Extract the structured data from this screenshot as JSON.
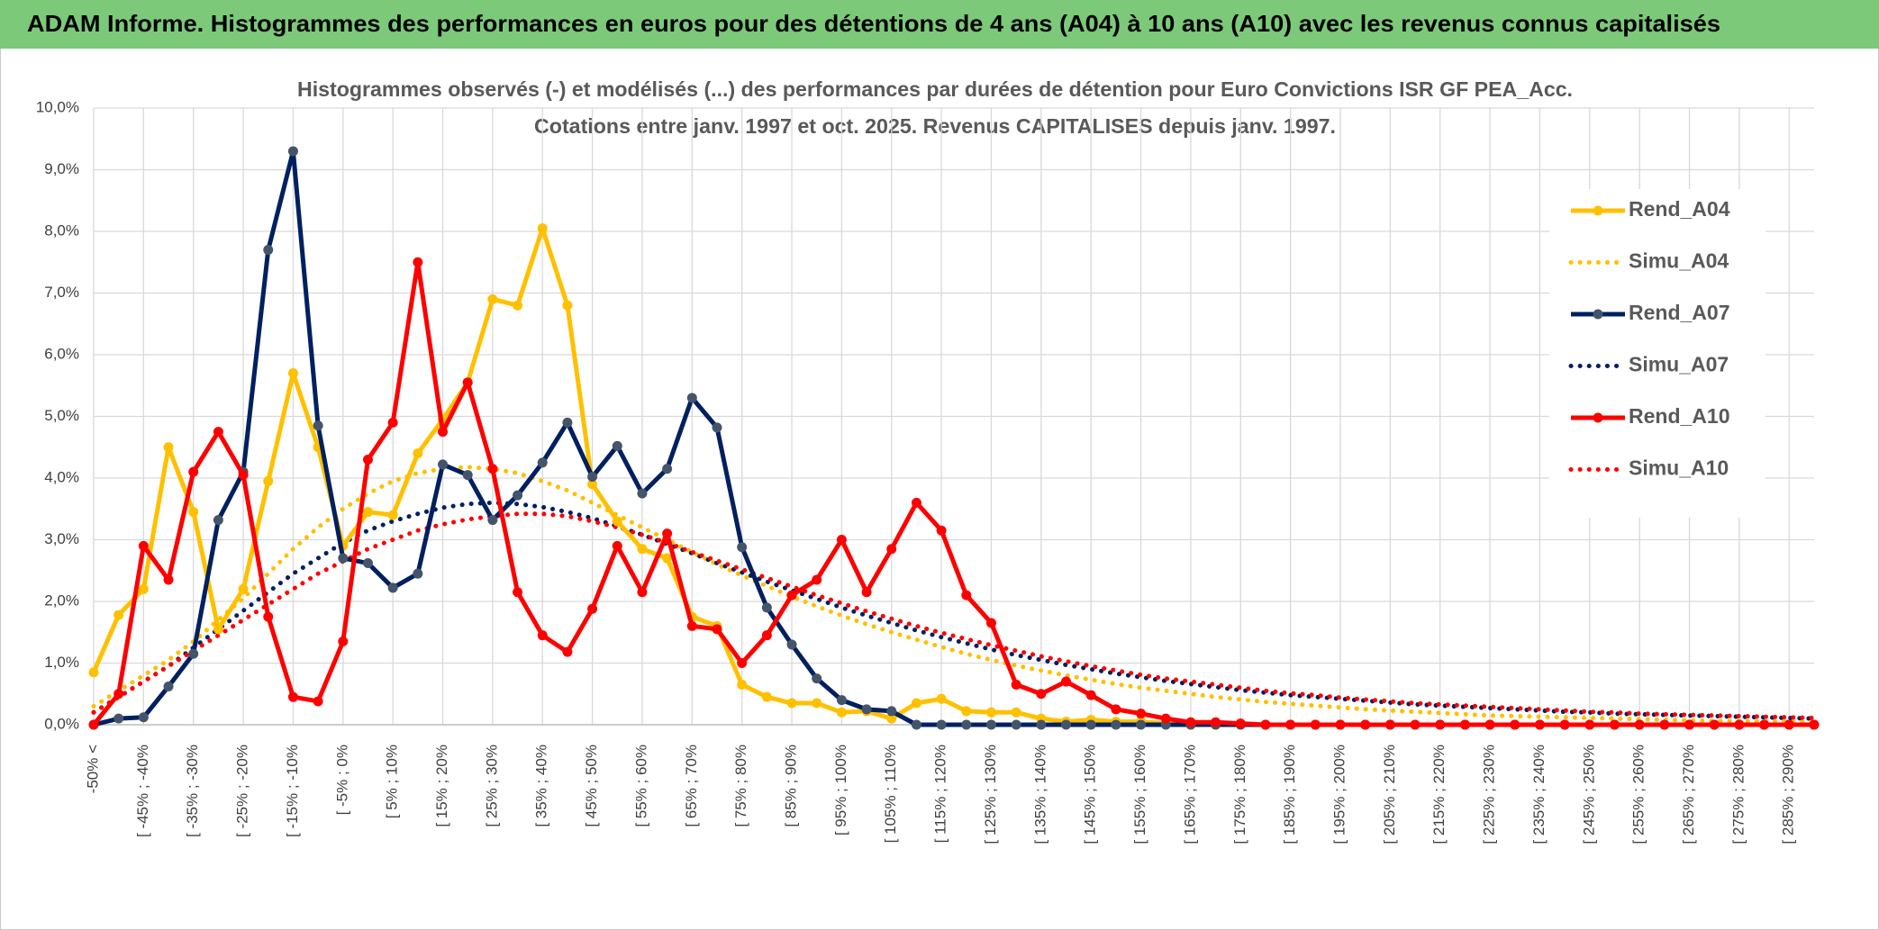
{
  "header": {
    "title": "ADAM Informe. Histogrammes des performances en euros pour des détentions de 4 ans (A04) à 10 ans (A10) avec les revenus connus capitalisés"
  },
  "chart_data": {
    "type": "line",
    "title": "Histogrammes observés (-) et modélisés (...) des performances par durées de détention pour Euro Convictions ISR GF PEA_Acc.",
    "subtitle": "Cotations entre janv. 1997 et oct. 2025. Revenus CAPITALISES depuis janv. 1997.",
    "categories": [
      "-50% <",
      null,
      "[ -45% ; -40%",
      null,
      "[ -35% ; -30%",
      null,
      "[ -25% ; -20%",
      null,
      "[ -15% ; -10%",
      null,
      "[ -5% ; 0%",
      null,
      "[ 5% ; 10%",
      null,
      "[ 15% ; 20%",
      null,
      "[ 25% ; 30%",
      null,
      "[ 35% ; 40%",
      null,
      "[ 45% ; 50%",
      null,
      "[ 55% ; 60%",
      null,
      "[ 65% ; 70%",
      null,
      "[ 75% ; 80%",
      null,
      "[ 85% ; 90%",
      null,
      "[ 95% ; 100%",
      null,
      "[ 105% ; 110%",
      null,
      "[ 115% ; 120%",
      null,
      "[ 125% ; 130%",
      null,
      "[ 135% ; 140%",
      null,
      "[ 145% ; 150%",
      null,
      "[ 155% ; 160%",
      null,
      "[ 165% ; 170%",
      null,
      "[ 175% ; 180%",
      null,
      "[ 185% ; 190%",
      null,
      "[ 195% ; 200%",
      null,
      "[ 205% ; 210%",
      null,
      "[ 215% ; 220%",
      null,
      "[ 225% ; 230%",
      null,
      "[ 235% ; 240%",
      null,
      "[ 245% ; 250%",
      null,
      "[ 255% ; 260%",
      null,
      "[ 265% ; 270%",
      null,
      "[ 275% ; 280%",
      null,
      "[ 285% ; 290%",
      null
    ],
    "series": [
      {
        "name": "Rend_A04",
        "color": "#ffc000",
        "marker_color": "#ffc000",
        "style": "solid",
        "values": [
          0.85,
          1.78,
          2.2,
          4.5,
          3.45,
          1.55,
          2.2,
          3.95,
          5.7,
          4.5,
          2.9,
          3.45,
          3.4,
          4.4,
          4.95,
          5.55,
          6.9,
          6.8,
          8.05,
          6.8,
          3.9,
          3.3,
          2.85,
          2.7,
          1.75,
          1.6,
          0.65,
          0.45,
          0.35,
          0.35,
          0.2,
          0.22,
          0.1,
          0.35,
          0.42,
          0.22,
          0.2,
          0.2,
          0.1,
          0.05,
          0.08,
          0.05,
          0.05,
          0.02,
          0,
          0,
          0,
          0,
          0,
          0,
          0,
          0,
          0,
          0,
          0,
          0,
          0,
          0,
          0,
          0,
          0,
          0,
          0,
          0,
          0,
          0,
          0,
          0,
          0,
          0
        ]
      },
      {
        "name": "Simu_A04",
        "color": "#ffc000",
        "style": "dotted",
        "values": [
          0.3,
          0.55,
          0.8,
          1.05,
          1.35,
          1.7,
          2.05,
          2.45,
          2.85,
          3.2,
          3.5,
          3.75,
          3.95,
          4.08,
          4.15,
          4.18,
          4.15,
          4.08,
          3.95,
          3.8,
          3.6,
          3.4,
          3.2,
          3.0,
          2.8,
          2.6,
          2.42,
          2.25,
          2.08,
          1.92,
          1.77,
          1.63,
          1.5,
          1.38,
          1.26,
          1.15,
          1.05,
          0.96,
          0.88,
          0.8,
          0.73,
          0.66,
          0.6,
          0.55,
          0.5,
          0.45,
          0.41,
          0.37,
          0.34,
          0.31,
          0.28,
          0.25,
          0.23,
          0.21,
          0.19,
          0.17,
          0.15,
          0.14,
          0.13,
          0.12,
          0.11,
          0.1,
          0.09,
          0.08,
          0.07,
          0.06,
          0.06,
          0.05,
          0.05,
          0.04
        ]
      },
      {
        "name": "Rend_A07",
        "color": "#002060",
        "marker_color": "#44546a",
        "style": "solid",
        "values": [
          0,
          0.1,
          0.12,
          0.62,
          1.15,
          3.32,
          4.1,
          7.7,
          9.3,
          4.85,
          2.7,
          2.62,
          2.22,
          2.45,
          4.22,
          4.05,
          3.32,
          3.72,
          4.25,
          4.9,
          4.02,
          4.52,
          3.75,
          4.15,
          5.3,
          4.82,
          2.88,
          1.9,
          1.3,
          0.75,
          0.4,
          0.25,
          0.22,
          0,
          0,
          0,
          0,
          0,
          0,
          0,
          0,
          0,
          0,
          0,
          0,
          0,
          0,
          0,
          0,
          0,
          0,
          0,
          0,
          0,
          0,
          0,
          0,
          0,
          0,
          0,
          0,
          0,
          0,
          0,
          0,
          0,
          0,
          0,
          0,
          0
        ]
      },
      {
        "name": "Simu_A07",
        "color": "#002060",
        "style": "dotted",
        "values": [
          0.2,
          0.45,
          0.7,
          0.95,
          1.25,
          1.55,
          1.85,
          2.15,
          2.45,
          2.7,
          2.95,
          3.15,
          3.3,
          3.42,
          3.52,
          3.58,
          3.6,
          3.58,
          3.53,
          3.45,
          3.35,
          3.22,
          3.08,
          2.93,
          2.78,
          2.62,
          2.47,
          2.32,
          2.18,
          2.04,
          1.9,
          1.77,
          1.65,
          1.53,
          1.42,
          1.32,
          1.22,
          1.13,
          1.05,
          0.97,
          0.9,
          0.83,
          0.77,
          0.71,
          0.66,
          0.61,
          0.56,
          0.52,
          0.48,
          0.45,
          0.42,
          0.39,
          0.36,
          0.33,
          0.31,
          0.29,
          0.27,
          0.25,
          0.23,
          0.21,
          0.2,
          0.18,
          0.17,
          0.16,
          0.15,
          0.14,
          0.13,
          0.12,
          0.11,
          0.1
        ]
      },
      {
        "name": "Rend_A10",
        "color": "#ff0000",
        "marker_color": "#ff0000",
        "style": "solid",
        "values": [
          0,
          0.5,
          2.9,
          2.35,
          4.1,
          4.75,
          4.05,
          1.75,
          0.45,
          0.38,
          1.35,
          4.3,
          4.9,
          7.5,
          4.75,
          5.55,
          4.15,
          2.15,
          1.45,
          1.18,
          1.88,
          2.9,
          2.15,
          3.1,
          1.6,
          1.55,
          1.0,
          1.45,
          2.1,
          2.35,
          3.0,
          2.15,
          2.85,
          3.6,
          3.15,
          2.1,
          1.65,
          0.65,
          0.5,
          0.7,
          0.48,
          0.25,
          0.18,
          0.1,
          0.04,
          0.04,
          0.02,
          0,
          0,
          0,
          0,
          0,
          0,
          0,
          0,
          0,
          0,
          0,
          0,
          0,
          0,
          0,
          0,
          0,
          0,
          0,
          0,
          0,
          0,
          0
        ]
      },
      {
        "name": "Simu_A10",
        "color": "#ff0000",
        "style": "dotted",
        "values": [
          0.2,
          0.45,
          0.7,
          0.95,
          1.2,
          1.45,
          1.7,
          1.95,
          2.2,
          2.45,
          2.65,
          2.85,
          3.0,
          3.15,
          3.25,
          3.33,
          3.38,
          3.42,
          3.42,
          3.38,
          3.3,
          3.2,
          3.08,
          2.95,
          2.8,
          2.66,
          2.52,
          2.38,
          2.24,
          2.1,
          1.97,
          1.84,
          1.72,
          1.6,
          1.49,
          1.39,
          1.29,
          1.2,
          1.11,
          1.03,
          0.95,
          0.88,
          0.81,
          0.75,
          0.7,
          0.65,
          0.6,
          0.55,
          0.51,
          0.48,
          0.44,
          0.41,
          0.38,
          0.35,
          0.33,
          0.31,
          0.29,
          0.27,
          0.25,
          0.23,
          0.21,
          0.2,
          0.18,
          0.17,
          0.16,
          0.15,
          0.14,
          0.13,
          0.12,
          0.11
        ]
      }
    ],
    "ylim": [
      0,
      10
    ],
    "yticks": [
      {
        "value": 0,
        "label": "0,0%"
      },
      {
        "value": 1,
        "label": "1,0%"
      },
      {
        "value": 2,
        "label": "2,0%"
      },
      {
        "value": 3,
        "label": "3,0%"
      },
      {
        "value": 4,
        "label": "4,0%"
      },
      {
        "value": 5,
        "label": "5,0%"
      },
      {
        "value": 6,
        "label": "6,0%"
      },
      {
        "value": 7,
        "label": "7,0%"
      },
      {
        "value": 8,
        "label": "8,0%"
      },
      {
        "value": 9,
        "label": "9,0%"
      },
      {
        "value": 10,
        "label": "10,0%"
      }
    ],
    "grid": true,
    "legend": "right"
  }
}
